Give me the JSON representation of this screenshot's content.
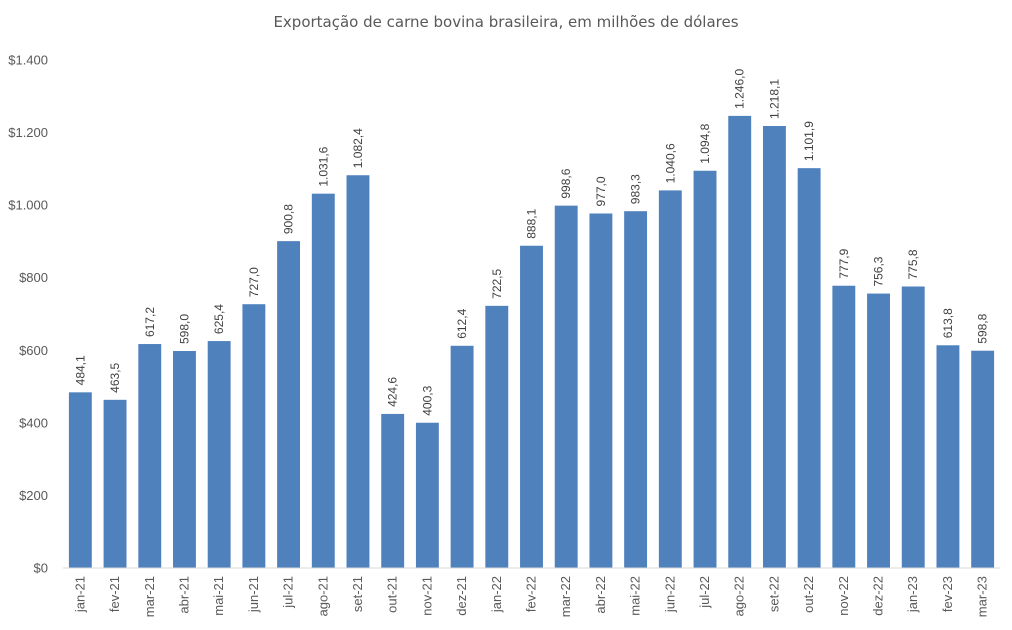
{
  "chart_data": {
    "type": "bar",
    "title": "Exportação de carne bovina brasileira, em milhões de dólares",
    "xlabel": "",
    "ylabel": "",
    "ylim": [
      0,
      1400
    ],
    "yticks": [
      0,
      200,
      400,
      600,
      800,
      1000,
      1200,
      1400
    ],
    "ytick_labels": [
      "$0",
      "$200",
      "$400",
      "$600",
      "$800",
      "$1.000",
      "$1.200",
      "$1.400"
    ],
    "grid": false,
    "legend": "none",
    "bar_color": "#4f81bd",
    "categories": [
      "jan-21",
      "fev-21",
      "mar-21",
      "abr-21",
      "mai-21",
      "jun-21",
      "jul-21",
      "ago-21",
      "set-21",
      "out-21",
      "nov-21",
      "dez-21",
      "jan-22",
      "fev-22",
      "mar-22",
      "abr-22",
      "mai-22",
      "jun-22",
      "jul-22",
      "ago-22",
      "set-22",
      "out-22",
      "nov-22",
      "dez-22",
      "jan-23",
      "fev-23",
      "mar-23"
    ],
    "values": [
      484.1,
      463.5,
      617.2,
      598.0,
      625.4,
      727.0,
      900.8,
      1031.6,
      1082.4,
      424.6,
      400.3,
      612.4,
      722.5,
      888.1,
      998.6,
      977.0,
      983.3,
      1040.6,
      1094.8,
      1246.0,
      1218.1,
      1101.9,
      777.9,
      756.3,
      775.8,
      613.8,
      598.8
    ],
    "data_labels": [
      "484,1",
      "463,5",
      "617,2",
      "598,0",
      "625,4",
      "727,0",
      "900,8",
      "1.031,6",
      "1.082,4",
      "424,6",
      "400,3",
      "612,4",
      "722,5",
      "888,1",
      "998,6",
      "977,0",
      "983,3",
      "1.040,6",
      "1.094,8",
      "1.246,0",
      "1.218,1",
      "1.101,9",
      "777,9",
      "756,3",
      "775,8",
      "613,8",
      "598,8"
    ]
  }
}
